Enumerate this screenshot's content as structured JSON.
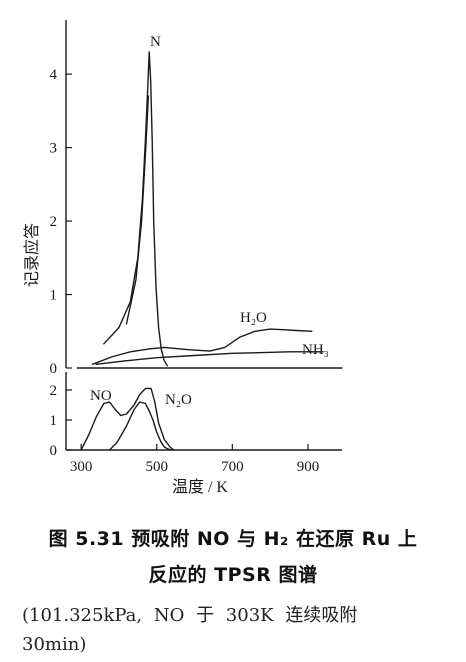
{
  "chart_data": {
    "type": "line",
    "xlabel": "温度 / K",
    "ylabel": "记录应答",
    "x_ticks": [
      300,
      500,
      700,
      900
    ],
    "xlim": [
      260,
      990
    ],
    "panels": [
      {
        "name": "upper",
        "ylim": [
          0,
          4.6
        ],
        "y_ticks": [
          0,
          1,
          2,
          3,
          4
        ],
        "series": [
          {
            "name": "N",
            "x": [
              360,
              400,
              430,
              450,
              462,
              470,
              476,
              480,
              484,
              488,
              492,
              498,
              505,
              512,
              520,
              528
            ],
            "y": [
              0.33,
              0.55,
              0.9,
              1.5,
              2.3,
              3.1,
              3.8,
              4.3,
              3.9,
              3.1,
              2.0,
              1.1,
              0.55,
              0.25,
              0.1,
              0.03
            ]
          },
          {
            "name": "N-shoulder",
            "x": [
              420,
              445,
              460,
              470,
              478
            ],
            "y": [
              0.6,
              1.2,
              2.0,
              2.9,
              3.7
            ]
          },
          {
            "name": "H₂O",
            "x": [
              330,
              380,
              430,
              480,
              520,
              580,
              640,
              680,
              720,
              760,
              800,
              840,
              870,
              910
            ],
            "y": [
              0.05,
              0.15,
              0.22,
              0.26,
              0.28,
              0.25,
              0.23,
              0.28,
              0.42,
              0.5,
              0.53,
              0.52,
              0.51,
              0.5
            ]
          },
          {
            "name": "NH₃",
            "x": [
              340,
              420,
              500,
              600,
              700,
              780,
              850,
              940
            ],
            "y": [
              0.05,
              0.1,
              0.14,
              0.17,
              0.2,
              0.21,
              0.22,
              0.22
            ]
          },
          {
            "name": "baseline",
            "x": [
              290,
              990
            ],
            "y": [
              0,
              0
            ]
          }
        ]
      },
      {
        "name": "lower",
        "ylim": [
          0,
          2.6
        ],
        "y_ticks": [
          0,
          1,
          2
        ],
        "series": [
          {
            "name": "NO",
            "x": [
              300,
              320,
              340,
              360,
              375,
              390,
              405,
              420,
              440,
              455,
              470,
              485,
              495,
              505,
              520,
              535,
              545
            ],
            "y": [
              0.0,
              0.5,
              1.1,
              1.55,
              1.6,
              1.35,
              1.15,
              1.2,
              1.5,
              1.85,
              2.05,
              2.05,
              1.6,
              0.9,
              0.35,
              0.1,
              0.0
            ]
          },
          {
            "name": "N₂O",
            "x": [
              375,
              395,
              420,
              440,
              455,
              470,
              480,
              490,
              500,
              510,
              520,
              530,
              540
            ],
            "y": [
              0.0,
              0.25,
              0.8,
              1.35,
              1.6,
              1.55,
              1.3,
              1.0,
              0.6,
              0.3,
              0.1,
              0.03,
              0.0
            ]
          }
        ]
      }
    ],
    "labels": {
      "n": "N",
      "h2o": "H₂O",
      "nh3": "NH₃",
      "no": "NO",
      "n2o": "N₂O"
    }
  },
  "caption": {
    "title_line1": "图 5.31   预吸附 NO 与 H₂ 在还原 Ru 上",
    "title_line2": "反应的 TPSR 图谱",
    "note_line1": "(101.325kPa, NO 于 303K 连续吸附",
    "note_line2": "30min)"
  }
}
